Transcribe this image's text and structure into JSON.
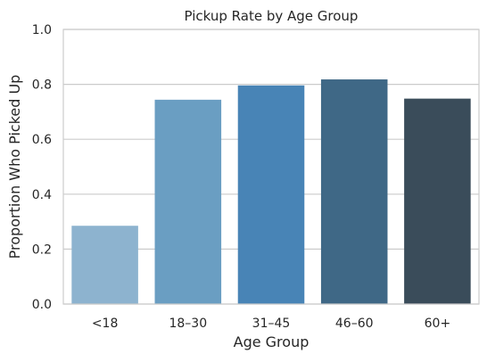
{
  "chart_data": {
    "type": "bar",
    "title": "Pickup Rate by Age Group",
    "xlabel": "Age Group",
    "ylabel": "Proportion Who Picked Up",
    "categories": [
      "<18",
      "18–30",
      "31–45",
      "46–60",
      "60+"
    ],
    "values": [
      0.285,
      0.744,
      0.796,
      0.818,
      0.748
    ],
    "ylim": [
      0,
      1.0
    ],
    "yticks": [
      "0.0",
      "0.2",
      "0.4",
      "0.6",
      "0.8",
      "1.0"
    ],
    "grid": true,
    "colors": [
      "#8DB3CF",
      "#6A9EC2",
      "#4884B6",
      "#3F6886",
      "#3A4C5A"
    ],
    "grid_color": "#CCCCCC",
    "frame_color": "#CCCCCC"
  }
}
